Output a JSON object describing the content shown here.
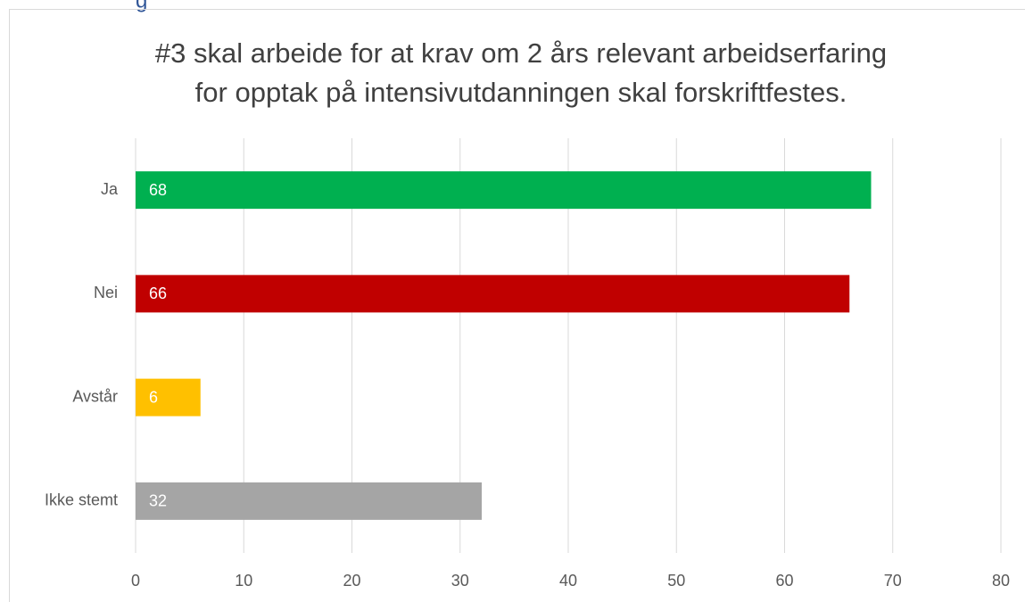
{
  "header": {
    "text": "g"
  },
  "chart_data": {
    "type": "hbar",
    "title": [
      "#3 skal arbeide for at krav om 2 års relevant arbeidserfaring",
      "for opptak på intensivutdanningen skal forskriftfestes."
    ],
    "categories": [
      "Ja",
      "Nei",
      "Avstår",
      "Ikke stemt"
    ],
    "values": [
      68,
      66,
      6,
      32
    ],
    "colors": [
      "#00b050",
      "#c00000",
      "#ffc000",
      "#a5a5a5"
    ],
    "xlim": [
      0,
      80
    ],
    "xticks": [
      0,
      10,
      20,
      30,
      40,
      50,
      60,
      70,
      80
    ],
    "grid": true
  }
}
